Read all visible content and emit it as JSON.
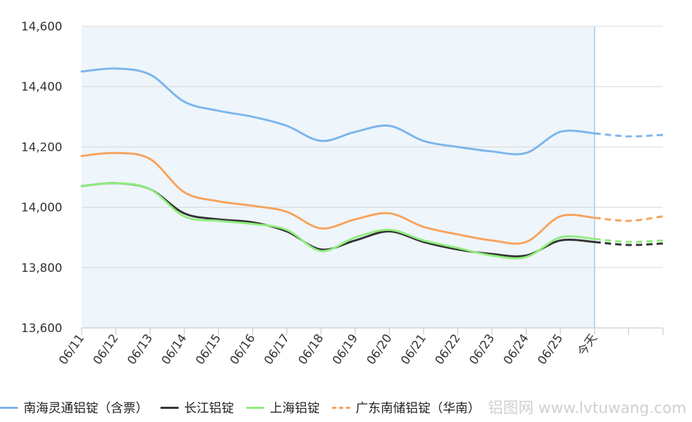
{
  "chart_data": {
    "type": "line",
    "categories": [
      "06/11",
      "06/12",
      "06/13",
      "06/14",
      "06/15",
      "06/16",
      "06/17",
      "06/18",
      "06/19",
      "06/20",
      "06/21",
      "06/22",
      "06/23",
      "06/24",
      "06/25",
      "今天",
      "",
      ""
    ],
    "ylim": [
      13600,
      14600
    ],
    "yticks": [
      "13,600",
      "13,800",
      "14,000",
      "14,200",
      "14,400",
      "14,600"
    ],
    "ytick_values": [
      13600,
      13800,
      14000,
      14200,
      14400,
      14600
    ],
    "grid": true,
    "today_index": 15,
    "highlight_range": [
      0,
      15
    ],
    "legend_position": "bottom",
    "series": [
      {
        "name": "南海灵通铝锭（含票）",
        "color": "#7cb5ec",
        "values": [
          14450,
          14460,
          14440,
          14350,
          14320,
          14300,
          14270,
          14220,
          14250,
          14270,
          14220,
          14200,
          14185,
          14180,
          14250,
          14245,
          14235,
          14240
        ]
      },
      {
        "name": "长江铝锭",
        "color": "#333333",
        "values": [
          14070,
          14080,
          14060,
          13980,
          13960,
          13950,
          13920,
          13860,
          13890,
          13920,
          13885,
          13860,
          13845,
          13840,
          13890,
          13885,
          13875,
          13880
        ]
      },
      {
        "name": "上海铝锭",
        "color": "#90ed7d",
        "values": [
          14070,
          14080,
          14060,
          13970,
          13955,
          13945,
          13925,
          13855,
          13900,
          13925,
          13890,
          13865,
          13840,
          13835,
          13900,
          13895,
          13885,
          13890
        ]
      },
      {
        "name": "广东南储铝锭（华南）",
        "color": "#f7a35c",
        "dashed_legend": true,
        "values": [
          14170,
          14180,
          14160,
          14050,
          14020,
          14005,
          13985,
          13930,
          13960,
          13980,
          13935,
          13910,
          13890,
          13885,
          13970,
          13965,
          13955,
          13970
        ]
      }
    ]
  },
  "watermark": "铝图网 www.lvtuwang.com"
}
